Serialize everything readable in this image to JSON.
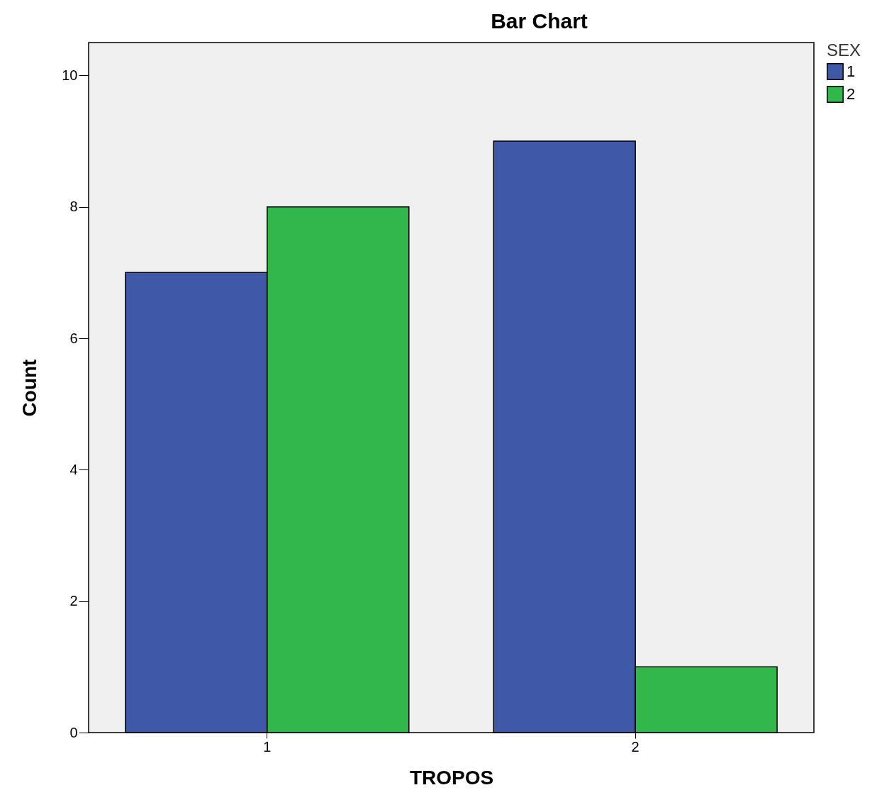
{
  "chart_data": {
    "type": "bar",
    "title": "Bar Chart",
    "xlabel": "TROPOS",
    "ylabel": "Count",
    "legend_title": "SEX",
    "categories": [
      "1",
      "2"
    ],
    "series": [
      {
        "name": "1",
        "color": "#3f58a8",
        "values": [
          7,
          9
        ]
      },
      {
        "name": "2",
        "color": "#30b84b",
        "values": [
          8,
          1
        ]
      }
    ],
    "ylim": [
      0,
      10.5
    ],
    "yticks": [
      0,
      2,
      4,
      6,
      8,
      10
    ],
    "grid": false,
    "legend": "top right"
  }
}
